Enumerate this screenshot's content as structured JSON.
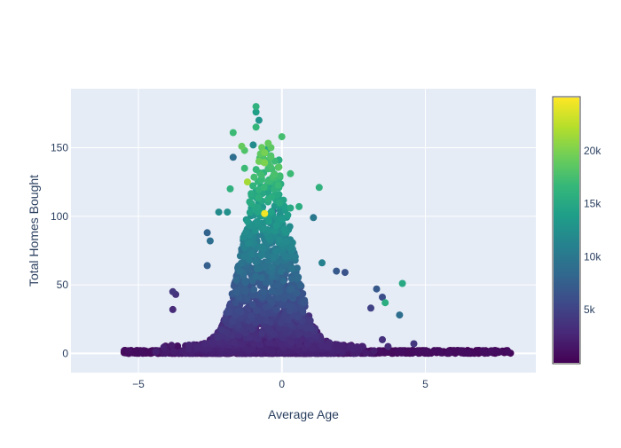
{
  "chart_data": {
    "type": "scatter",
    "title": "",
    "xlabel": "Average Age",
    "ylabel": "Total Homes Bought",
    "xlim": [
      -7.35,
      8.85
    ],
    "ylim": [
      -14,
      193
    ],
    "x_ticks": [
      -5,
      0,
      5
    ],
    "x_tick_labels": [
      "−5",
      "0",
      "5"
    ],
    "y_ticks": [
      0,
      50,
      100,
      150
    ],
    "y_tick_labels": [
      "0",
      "50",
      "100",
      "150"
    ],
    "grid": true,
    "legend": "none",
    "plot_background": "#e5ecf6",
    "colorscale": "Viridis",
    "colorscale_stops": [
      "#440154",
      "#482878",
      "#3e4989",
      "#31688e",
      "#26828e",
      "#1f9e89",
      "#35b779",
      "#6ece58",
      "#b5de2b",
      "#fde725"
    ],
    "colorbar": {
      "range": [
        0,
        25000
      ],
      "ticks": [
        5000,
        10000,
        15000,
        20000
      ],
      "tick_labels": [
        "5k",
        "10k",
        "15k",
        "20k"
      ],
      "placement": "right"
    },
    "series": [
      {
        "points": [
          {
            "x": -0.9,
            "y": 180,
            "c": 16000
          },
          {
            "x": -0.9,
            "y": 176,
            "c": 14000
          },
          {
            "x": -0.8,
            "y": 170,
            "c": 13000
          },
          {
            "x": -1.7,
            "y": 161,
            "c": 17000
          },
          {
            "x": -0.9,
            "y": 165,
            "c": 16500
          },
          {
            "x": 0.0,
            "y": 158,
            "c": 17500
          },
          {
            "x": -1.4,
            "y": 151,
            "c": 19000
          },
          {
            "x": -1.3,
            "y": 148,
            "c": 18000
          },
          {
            "x": -1.0,
            "y": 152,
            "c": 12000
          },
          {
            "x": -0.5,
            "y": 149,
            "c": 15000
          },
          {
            "x": -1.7,
            "y": 143,
            "c": 9000
          },
          {
            "x": -0.6,
            "y": 139,
            "c": 20000
          },
          {
            "x": -0.8,
            "y": 140,
            "c": 19500
          },
          {
            "x": -0.1,
            "y": 141,
            "c": 15500
          },
          {
            "x": -1.3,
            "y": 135,
            "c": 17000
          },
          {
            "x": -1.2,
            "y": 125,
            "c": 21500
          },
          {
            "x": 0.3,
            "y": 131,
            "c": 17000
          },
          {
            "x": -1.8,
            "y": 120,
            "c": 16000
          },
          {
            "x": -0.5,
            "y": 123,
            "c": 11000
          },
          {
            "x": -0.3,
            "y": 120,
            "c": 14000
          },
          {
            "x": 1.3,
            "y": 121,
            "c": 16000
          },
          {
            "x": -2.2,
            "y": 103,
            "c": 12000
          },
          {
            "x": -1.9,
            "y": 103,
            "c": 12500
          },
          {
            "x": -0.6,
            "y": 102,
            "c": 24500
          },
          {
            "x": -0.3,
            "y": 104,
            "c": 9000
          },
          {
            "x": 0.3,
            "y": 106,
            "c": 15000
          },
          {
            "x": 0.6,
            "y": 107,
            "c": 15500
          },
          {
            "x": 1.1,
            "y": 99,
            "c": 10000
          },
          {
            "x": 4.2,
            "y": 51,
            "c": 15000
          },
          {
            "x": 3.6,
            "y": 37,
            "c": 15500
          },
          {
            "x": 4.1,
            "y": 28,
            "c": 9000
          },
          {
            "x": 3.3,
            "y": 47,
            "c": 7000
          },
          {
            "x": 3.5,
            "y": 41,
            "c": 6000
          },
          {
            "x": 3.1,
            "y": 33,
            "c": 5000
          },
          {
            "x": 2.2,
            "y": 59,
            "c": 6500
          },
          {
            "x": 1.9,
            "y": 60,
            "c": 7000
          },
          {
            "x": 1.4,
            "y": 66,
            "c": 11000
          },
          {
            "x": -3.8,
            "y": 45,
            "c": 4000
          },
          {
            "x": -3.7,
            "y": 43,
            "c": 3500
          },
          {
            "x": -3.8,
            "y": 32,
            "c": 3000
          },
          {
            "x": -2.6,
            "y": 88,
            "c": 8000
          },
          {
            "x": -2.6,
            "y": 64,
            "c": 7500
          },
          {
            "x": -2.5,
            "y": 82,
            "c": 9000
          },
          {
            "x": 4.6,
            "y": 7,
            "c": 4000
          },
          {
            "x": 3.7,
            "y": 5,
            "c": 3000
          },
          {
            "x": 3.5,
            "y": 10,
            "c": 3500
          }
        ],
        "cloud": {
          "count": 2600,
          "seed": 12345,
          "center_x": -0.5,
          "spread_x": 1.35,
          "baseline_count": 800,
          "baseline_x_range": [
            -5.5,
            8.0
          ]
        }
      }
    ]
  }
}
